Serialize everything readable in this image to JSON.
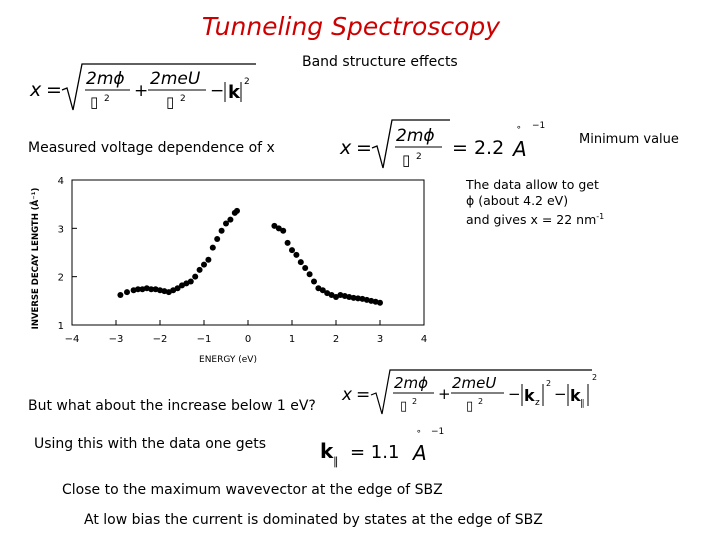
{
  "title": "Tunneling Spectroscopy",
  "band_structure_label": "Band structure effects",
  "measured_label": "Measured voltage dependence of x",
  "minimum_label": "Minimum value",
  "data_note": {
    "line1": "The data allow to get",
    "line2": "ϕ (about 4.2 eV)",
    "line3_prefix": "and gives x = 22 nm",
    "line3_sup": "-1"
  },
  "question": "But what about the increase below 1 eV?",
  "using_label": "Using this with the data one gets",
  "close_label": "Close to the maximum wavevector at the edge of SBZ",
  "low_bias_label": "At low bias the current is dominated by states at the edge of SBZ",
  "equations": {
    "eq1": {
      "lhs": "x",
      "term1": "2mϕ",
      "term2": "2meU",
      "denom": "▯",
      "denom_pow": "2",
      "k": "k",
      "k_pow": "2"
    },
    "eq2": {
      "lhs": "x",
      "term1": "2mϕ",
      "denom": "▯",
      "denom_pow": "2",
      "rhs": "= 2.2",
      "unit": "A",
      "unit_pow": "−1",
      "ring": "∘"
    },
    "eq3": {
      "lhs": "x",
      "term1": "2mϕ",
      "term2": "2meU",
      "denom": "▯",
      "denom_pow": "2",
      "kz": "k",
      "kz_sub": "z",
      "kpar": "k",
      "kpar_sub": "∥",
      "pow": "2"
    },
    "eq4": {
      "k": "k",
      "k_sub": "∥",
      "rhs": "= 1.1",
      "unit": "A",
      "unit_pow": "−1",
      "ring": "∘"
    }
  },
  "chart_data": {
    "type": "scatter",
    "xlabel": "ENERGY (eV)",
    "ylabel": "INVERSE DECAY LENGTH (Å⁻¹)",
    "xlim": [
      -4,
      4
    ],
    "ylim": [
      1,
      4
    ],
    "xticks": [
      "−4",
      "−3",
      "−2",
      "−1",
      "0",
      "1",
      "2",
      "3",
      "4"
    ],
    "yticks": [
      "4",
      "3",
      "2",
      "1"
    ],
    "x": [
      -2.9,
      -2.75,
      -2.6,
      -2.5,
      -2.4,
      -2.3,
      -2.2,
      -2.1,
      -2.0,
      -1.9,
      -1.8,
      -1.7,
      -1.6,
      -1.5,
      -1.4,
      -1.3,
      -1.2,
      -1.1,
      -1.0,
      -0.9,
      -0.8,
      -0.7,
      -0.6,
      -0.5,
      -0.4,
      -0.3,
      -0.25,
      0.6,
      0.7,
      0.8,
      0.9,
      1.0,
      1.1,
      1.2,
      1.3,
      1.4,
      1.5,
      1.6,
      1.7,
      1.8,
      1.9,
      2.0,
      2.1,
      2.2,
      2.3,
      2.4,
      2.5,
      2.6,
      2.7,
      2.8,
      2.9,
      3.0
    ],
    "y": [
      1.62,
      1.68,
      1.72,
      1.74,
      1.74,
      1.76,
      1.74,
      1.74,
      1.72,
      1.7,
      1.68,
      1.72,
      1.76,
      1.82,
      1.86,
      1.9,
      2.0,
      2.14,
      2.25,
      2.35,
      2.6,
      2.78,
      2.95,
      3.1,
      3.18,
      3.32,
      3.36,
      3.05,
      3.0,
      2.95,
      2.7,
      2.55,
      2.45,
      2.3,
      2.18,
      2.05,
      1.9,
      1.76,
      1.72,
      1.66,
      1.62,
      1.58,
      1.62,
      1.6,
      1.58,
      1.56,
      1.55,
      1.54,
      1.52,
      1.5,
      1.48,
      1.46
    ]
  }
}
